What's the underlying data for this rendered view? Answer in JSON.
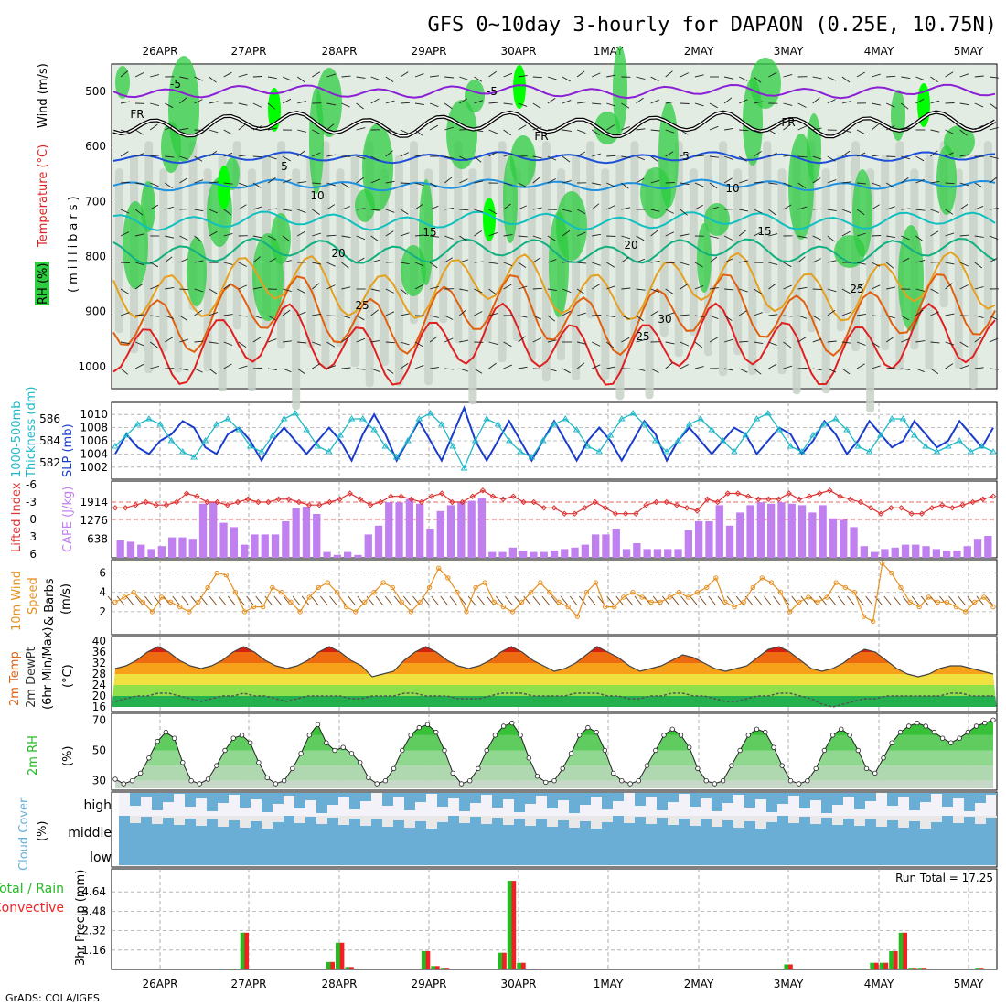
{
  "title": "GFS 0~10day 3-hourly for DAPAON (0.25E, 10.75N)",
  "footer": "GrADS: COLA/IGES",
  "dates": [
    "26APR",
    "27APR",
    "28APR",
    "29APR",
    "30APR",
    "1MAY",
    "2MAY",
    "3MAY",
    "4MAY",
    "5MAY"
  ],
  "colors": {
    "rh_green": "#2ecc40",
    "rh_bright": "#00ff00",
    "gray_fill": "#c8d2c8",
    "light_fill": "#e3ece3",
    "freezing": "#000000",
    "neg5": "#8a1fd6",
    "t5": "#1e4fd8",
    "t10": "#1e90e0",
    "t15": "#10c0c0",
    "t20": "#10b080",
    "t25": "#e6a020",
    "t30": "#e06010",
    "t35": "#e02020",
    "slp": "#1a3ccc",
    "thick": "#20b8c8",
    "lifted": "#dd3333",
    "cape": "#c080f0",
    "wind": "#e69020",
    "cloud": "#6aaed6",
    "precip_total": "#22bb22",
    "precip_conv": "#ee2222"
  },
  "panels": {
    "upper": {
      "y_axis_label": "(millibars)",
      "legend": [
        "RH (%)",
        "Temperature (°C)",
        "Wind (m/s)"
      ],
      "levels": [
        "500",
        "600",
        "700",
        "800",
        "900",
        "1000"
      ],
      "contour_labels": [
        {
          "text": "-5",
          "color": "neg5"
        },
        {
          "text": "-5",
          "color": "neg5"
        },
        {
          "text": "FR",
          "color": "freezing"
        },
        {
          "text": "FR",
          "color": "freezing"
        },
        {
          "text": "FR",
          "color": "freezing"
        },
        {
          "text": "5",
          "color": "t5"
        },
        {
          "text": "5",
          "color": "t5"
        },
        {
          "text": "10",
          "color": "t10"
        },
        {
          "text": "10",
          "color": "t10"
        },
        {
          "text": "15",
          "color": "t15"
        },
        {
          "text": "15",
          "color": "t15"
        },
        {
          "text": "20",
          "color": "t20"
        },
        {
          "text": "20",
          "color": "t20"
        },
        {
          "text": "25",
          "color": "t25"
        },
        {
          "text": "25",
          "color": "t25"
        },
        {
          "text": "25",
          "color": "t25"
        },
        {
          "text": "30",
          "color": "t30"
        }
      ]
    },
    "slp_thickness": {
      "labels": [
        "1000-500mb",
        "Thickness (dm)",
        "SLP (mb)"
      ],
      "left_ticks": [
        "586",
        "584",
        "582"
      ],
      "right_ticks": [
        "1010",
        "1008",
        "1006",
        "1004",
        "1002"
      ]
    },
    "lifted_cape": {
      "labels": [
        "Lifted Index",
        "CAPE (J/kg)"
      ],
      "left_ticks": [
        "-6",
        "-3",
        "0",
        "3",
        "6"
      ],
      "right_ticks": [
        "1914",
        "1276",
        "638"
      ]
    },
    "wind10m": {
      "labels": [
        "10m Wind",
        "Speed",
        "& Barbs",
        "(m/s)"
      ],
      "ticks": [
        "6",
        "4",
        "2"
      ]
    },
    "temp2m": {
      "labels": [
        "2m Temp",
        "2m DewPt",
        "(6hr Min/Max)",
        "(°C)"
      ],
      "ticks": [
        "40",
        "36",
        "32",
        "28",
        "24",
        "20",
        "16"
      ]
    },
    "rh2m": {
      "labels": [
        "2m RH",
        "(%)"
      ],
      "ticks": [
        "70",
        "50",
        "30"
      ]
    },
    "cloud": {
      "labels": [
        "Cloud Cover",
        "(%)"
      ],
      "ticks": [
        "high",
        "middle",
        "low"
      ]
    },
    "precip": {
      "labels": [
        "Total / Rain",
        "Convective",
        "3hr Precip (mm)"
      ],
      "ticks": [
        "4.64",
        "3.48",
        "2.32",
        "1.16"
      ],
      "run_total": "Run Total = 17.25"
    }
  },
  "chart_data": [
    {
      "type": "line",
      "title": "SLP (mb)",
      "series": [
        {
          "name": "SLP (mb)",
          "values": [
            1004,
            1007,
            1005,
            1004,
            1006,
            1007,
            1009,
            1008,
            1005,
            1004,
            1007,
            1008,
            1006,
            1003,
            1006,
            1008,
            1006,
            1004,
            1006,
            1008,
            1006,
            1003,
            1007,
            1010,
            1007,
            1003,
            1006,
            1009,
            1006,
            1003,
            1007,
            1011,
            1006,
            1003,
            1006,
            1009,
            1006,
            1003,
            1006,
            1009,
            1006,
            1003,
            1006,
            1008,
            1006,
            1003,
            1006,
            1009,
            1007,
            1003,
            1006,
            1008,
            1006,
            1004,
            1006,
            1008,
            1007,
            1004,
            1006,
            1008,
            1007,
            1004,
            1006,
            1009,
            1007,
            1004,
            1006,
            1009,
            1007,
            1005,
            1006,
            1009,
            1007,
            1005,
            1006,
            1009,
            1007,
            1005,
            1008
          ]
        }
      ],
      "ylim": [
        1001,
        1011
      ]
    },
    {
      "type": "line",
      "title": "1000-500mb Thickness (dm)",
      "series": [
        {
          "name": "Thickness (dm)",
          "values": [
            583.5,
            584.5,
            585.5,
            586,
            585.5,
            584,
            583,
            582.5,
            584,
            585.5,
            586,
            585,
            583.5,
            583,
            584.5,
            586,
            586.5,
            585,
            583.5,
            583,
            584.5,
            586,
            586,
            585,
            583.5,
            582.5,
            584,
            586,
            586.5,
            585.5,
            583.5,
            581.5,
            584,
            586,
            585.5,
            584,
            583,
            582.5,
            584,
            585.5,
            586,
            585,
            583.5,
            583,
            584.5,
            586,
            586.5,
            585.5,
            584,
            583,
            584,
            585.5,
            586,
            585,
            584,
            583,
            584.5,
            586,
            586.5,
            585,
            583.5,
            583,
            584.5,
            585.5,
            586,
            585,
            583.5,
            583,
            584.5,
            586,
            586,
            584.5,
            583.5,
            583,
            583.5,
            584,
            583,
            583.5,
            583
          ]
        }
      ],
      "ylim": [
        581,
        587
      ]
    },
    {
      "type": "bar",
      "title": "CAPE (J/kg)",
      "values": [
        600,
        550,
        450,
        300,
        400,
        700,
        700,
        650,
        1850,
        1900,
        1200,
        1050,
        450,
        800,
        800,
        800,
        1250,
        1700,
        1750,
        1500,
        200,
        100,
        200,
        100,
        800,
        1100,
        1900,
        1900,
        2000,
        1850,
        1000,
        1600,
        1800,
        1900,
        1950,
        2050,
        200,
        200,
        350,
        250,
        200,
        200,
        250,
        300,
        350,
        450,
        800,
        800,
        1000,
        300,
        500,
        300,
        300,
        300,
        300,
        950,
        1250,
        1250,
        1800,
        1100,
        1550,
        1800,
        1900,
        1850,
        1900,
        1850,
        1800,
        1550,
        1800,
        1350,
        1300,
        1050,
        400,
        200,
        300,
        350,
        450,
        450,
        400,
        300,
        250,
        250,
        400,
        650,
        750
      ],
      "ylim": [
        0,
        2500
      ]
    },
    {
      "type": "line",
      "title": "Lifted Index",
      "series": [
        {
          "name": "Lifted Index",
          "values": [
            -2,
            -2,
            -2.5,
            -3,
            -2.5,
            -2.5,
            -3,
            -4.5,
            -4,
            -3,
            -3,
            -2.5,
            -3,
            -3.5,
            -3,
            -3,
            -3.5,
            -3.5,
            -3,
            -2.5,
            -2.5,
            -3,
            -3.5,
            -4.5,
            -3.5,
            -2.5,
            -3,
            -4,
            -4,
            -3.5,
            -3,
            -4,
            -4.5,
            -3,
            -3,
            -4,
            -5,
            -4,
            -3.5,
            -4,
            -3,
            -3,
            -2,
            -2,
            -1,
            -1,
            -2,
            -3,
            -2,
            -1,
            -1,
            -1,
            -2.5,
            -3,
            -3,
            -2.5,
            -2,
            -1.5,
            -3.5,
            -3,
            -4.5,
            -4.5,
            -4,
            -3.5,
            -3.5,
            -3.5,
            -4.5,
            -3.5,
            -4,
            -4.5,
            -5,
            -4,
            -3.5,
            -3,
            -2,
            -1,
            -2,
            -2,
            -1,
            -1,
            -2,
            -2.5,
            -2,
            -2.5,
            -3,
            -3.5,
            -4
          ]
        }
      ],
      "ylim": [
        -6,
        6
      ]
    },
    {
      "type": "line",
      "title": "10m Wind Speed",
      "series": [
        {
          "name": "10m Wind Speed",
          "values": [
            3,
            3.5,
            4,
            3,
            2,
            3.5,
            3,
            2.5,
            2,
            3,
            4.5,
            6,
            5.8,
            4,
            2,
            2.5,
            2.5,
            4.5,
            4,
            3,
            2,
            3.5,
            4.5,
            5,
            4,
            2.5,
            2,
            3,
            4,
            5,
            4.5,
            3,
            2,
            3,
            4.5,
            6.5,
            5.5,
            4,
            2,
            4.5,
            5,
            3,
            2.5,
            2,
            3,
            4,
            5,
            4,
            3,
            2.5,
            1.5,
            4,
            5,
            2.5,
            2.5,
            3.5,
            4,
            3.5,
            3,
            3,
            3.5,
            4,
            3.5,
            4,
            4.5,
            5.5,
            3,
            2.5,
            3,
            4.5,
            5.5,
            5,
            4,
            2,
            3,
            3.5,
            3,
            3.5,
            5,
            4.5,
            4,
            1.5,
            1,
            7,
            6,
            4.5,
            3,
            2.5,
            3.5,
            3,
            3,
            2.5,
            2,
            3,
            3.5,
            2.5
          ]
        }
      ],
      "ylim": [
        0,
        7
      ]
    },
    {
      "type": "area",
      "title": "2m Temp",
      "series": [
        {
          "name": "2m Temp",
          "values": [
            30,
            31,
            33,
            36,
            38,
            36,
            33,
            31,
            30,
            31,
            33,
            36,
            38,
            36,
            33,
            31,
            30,
            31,
            33,
            36,
            38,
            36,
            33,
            31,
            27,
            28,
            29,
            33,
            36,
            38,
            36,
            33,
            31,
            30,
            31,
            33,
            36,
            38,
            36,
            33,
            31,
            29,
            30,
            32,
            35,
            38,
            36,
            34,
            31,
            29,
            30,
            31,
            33,
            35,
            34,
            32,
            30,
            29,
            30,
            31,
            34,
            37,
            38,
            36,
            33,
            30,
            29,
            30,
            32,
            35,
            37,
            36,
            33,
            30,
            28,
            27,
            28,
            30,
            31,
            31,
            30,
            29,
            28
          ]
        },
        {
          "name": "2m DewPt",
          "values": [
            18,
            19,
            20,
            20,
            21,
            21,
            20,
            19,
            18,
            19,
            20,
            20,
            21,
            20,
            20,
            19,
            18,
            19,
            20,
            20,
            20,
            20,
            19,
            19,
            20,
            20,
            20,
            21,
            21,
            20,
            20,
            20,
            19,
            19,
            19,
            20,
            21,
            21,
            21,
            20,
            20,
            20,
            20,
            21,
            21,
            21,
            20,
            20,
            19,
            19,
            20,
            20,
            21,
            21,
            20,
            20,
            19,
            18,
            18,
            19,
            20,
            20,
            21,
            21,
            20,
            19,
            17,
            16,
            17,
            18,
            19,
            19,
            20,
            20,
            20,
            20,
            20,
            20,
            21,
            21,
            20,
            20,
            20
          ]
        }
      ],
      "ylim": [
        15,
        41
      ]
    },
    {
      "type": "area",
      "title": "2m RH",
      "series": [
        {
          "name": "2m RH",
          "values": [
            31,
            28,
            30,
            35,
            45,
            56,
            62,
            58,
            42,
            30,
            28,
            31,
            40,
            50,
            58,
            60,
            55,
            42,
            32,
            28,
            30,
            38,
            48,
            60,
            67,
            55,
            50,
            52,
            48,
            42,
            32,
            28,
            30,
            38,
            50,
            60,
            65,
            67,
            62,
            50,
            35,
            28,
            30,
            38,
            50,
            60,
            66,
            68,
            60,
            45,
            33,
            29,
            30,
            38,
            48,
            60,
            65,
            62,
            50,
            35,
            30,
            28,
            30,
            40,
            50,
            60,
            64,
            60,
            52,
            38,
            30,
            28,
            30,
            40,
            50,
            60,
            64,
            62,
            52,
            40,
            30,
            28,
            30,
            38,
            50,
            60,
            64,
            60,
            50,
            38,
            35,
            45,
            55,
            62,
            66,
            68,
            66,
            62,
            58,
            55,
            58,
            62,
            66,
            68,
            70
          ]
        }
      ],
      "ylim": [
        25,
        72
      ]
    },
    {
      "type": "bar",
      "title": "3hr Precip (mm)",
      "series": [
        {
          "name": "Total",
          "values": [
            0,
            0,
            0,
            0,
            0,
            0,
            0,
            0,
            0,
            0,
            0,
            0,
            0.05,
            2.2,
            0,
            0,
            0,
            0,
            0,
            0,
            0,
            0,
            0.45,
            1.6,
            0.15,
            0,
            0,
            0,
            0,
            0,
            0,
            0,
            1.1,
            0.2,
            0.1,
            0,
            0,
            0,
            0,
            0,
            1,
            5.3,
            0.4,
            0.05,
            0,
            0,
            0,
            0,
            0,
            0,
            0,
            0,
            0,
            0,
            0,
            0,
            0,
            0,
            0,
            0,
            0,
            0,
            0,
            0,
            0,
            0,
            0,
            0,
            0,
            0,
            0.3,
            0,
            0,
            0,
            0,
            0,
            0,
            0,
            0,
            0.4,
            0.4,
            1.1,
            2.2,
            0.1,
            0.1,
            0,
            0,
            0,
            0,
            0,
            0.1,
            0
          ]
        },
        {
          "name": "Convective",
          "values": [
            0,
            0,
            0,
            0,
            0,
            0,
            0,
            0,
            0,
            0,
            0,
            0,
            0.05,
            2.2,
            0,
            0,
            0,
            0,
            0,
            0,
            0,
            0,
            0.45,
            1.6,
            0.15,
            0,
            0,
            0,
            0,
            0,
            0,
            0,
            1.1,
            0.2,
            0.1,
            0,
            0,
            0,
            0,
            0,
            1,
            5.3,
            0.4,
            0.05,
            0,
            0,
            0,
            0,
            0,
            0,
            0,
            0,
            0,
            0,
            0,
            0,
            0,
            0,
            0,
            0,
            0,
            0,
            0,
            0,
            0,
            0,
            0,
            0,
            0,
            0,
            0.3,
            0,
            0,
            0,
            0,
            0,
            0,
            0,
            0,
            0.4,
            0.4,
            1.1,
            2.2,
            0.1,
            0.1,
            0,
            0,
            0,
            0,
            0,
            0.1,
            0
          ]
        }
      ],
      "ylim": [
        0,
        5.8
      ]
    }
  ]
}
